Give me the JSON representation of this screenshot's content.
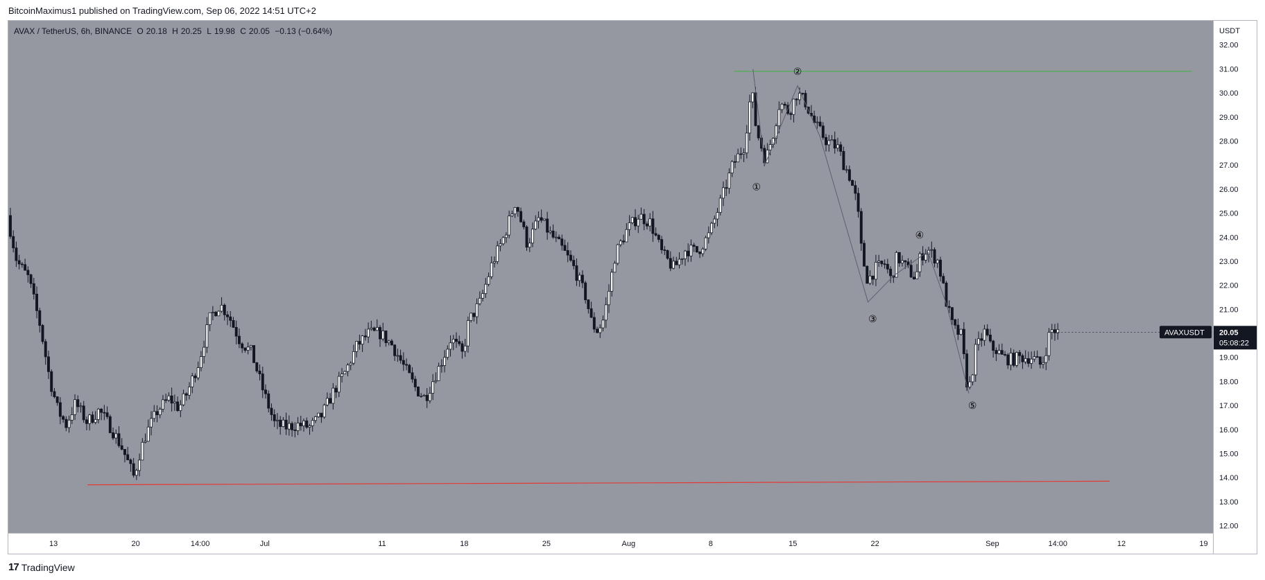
{
  "header": {
    "publisher_line": "BitcoinMaximus1 published on TradingView.com, Sep 06, 2022 14:51 UTC+2"
  },
  "legend": {
    "symbol": "AVAX / TetherUS, 6h, BINANCE",
    "open_label": "O",
    "open": "20.18",
    "high_label": "H",
    "high": "20.25",
    "low_label": "L",
    "low": "19.98",
    "close_label": "C",
    "close": "20.05",
    "change": "−0.13 (−0.64%)"
  },
  "price_tag": {
    "symbol": "AVAXUSDT",
    "price": "20.05",
    "countdown": "05:08:22"
  },
  "footer": {
    "logo": "17",
    "brand": "TradingView"
  },
  "colors": {
    "plot_bg": "#9598a1",
    "candle": "#131722",
    "support_line": "#e53935",
    "resistance_line": "#4caf50",
    "wave_line": "#5d606b",
    "axis_text": "#131722"
  },
  "chart_data": {
    "type": "candlestick",
    "y_axis_unit": "USDT",
    "ylim": [
      11.7,
      33.0
    ],
    "y_ticks": [
      "12.00",
      "13.00",
      "14.00",
      "15.00",
      "16.00",
      "17.00",
      "18.00",
      "19.00",
      "20.00",
      "21.00",
      "22.00",
      "23.00",
      "24.00",
      "25.00",
      "26.00",
      "27.00",
      "28.00",
      "29.00",
      "30.00",
      "31.00",
      "32.00"
    ],
    "x_ticks": [
      {
        "label": "13",
        "day": 13
      },
      {
        "label": "20",
        "day": 20
      },
      {
        "label": "14:00",
        "day": 25.5
      },
      {
        "label": "Jul",
        "day": 31
      },
      {
        "label": "11",
        "day": 41
      },
      {
        "label": "18",
        "day": 48
      },
      {
        "label": "25",
        "day": 55
      },
      {
        "label": "Aug",
        "day": 62
      },
      {
        "label": "8",
        "day": 69
      },
      {
        "label": "15",
        "day": 76
      },
      {
        "label": "22",
        "day": 83
      },
      {
        "label": "Sep",
        "day": 93
      },
      {
        "label": "14:00",
        "day": 98.58
      },
      {
        "label": "12",
        "day": 104
      },
      {
        "label": "19",
        "day": 111
      }
    ],
    "x_unit": "days since Jun 1, 2022 (6h candles)",
    "xlim": [
      9.15,
      111.8
    ],
    "price_path": [
      [
        9.2,
        24.9
      ],
      [
        10.0,
        23.0
      ],
      [
        11.0,
        22.3
      ],
      [
        12.0,
        20.3
      ],
      [
        12.8,
        18.1
      ],
      [
        13.5,
        16.8
      ],
      [
        14.2,
        16.2
      ],
      [
        15.0,
        17.1
      ],
      [
        16.0,
        16.3
      ],
      [
        17.0,
        16.8
      ],
      [
        18.0,
        16.1
      ],
      [
        19.0,
        15.2
      ],
      [
        20.0,
        14.0
      ],
      [
        20.4,
        14.9
      ],
      [
        21.0,
        15.8
      ],
      [
        22.0,
        16.8
      ],
      [
        23.0,
        17.3
      ],
      [
        23.8,
        16.9
      ],
      [
        24.5,
        17.5
      ],
      [
        25.5,
        18.8
      ],
      [
        26.5,
        20.7
      ],
      [
        27.3,
        21.2
      ],
      [
        28.0,
        20.8
      ],
      [
        29.0,
        19.7
      ],
      [
        30.0,
        19.2
      ],
      [
        31.0,
        17.6
      ],
      [
        32.0,
        16.2
      ],
      [
        33.0,
        16.1
      ],
      [
        34.0,
        16.2
      ],
      [
        35.0,
        16.1
      ],
      [
        36.0,
        16.6
      ],
      [
        37.0,
        17.6
      ],
      [
        38.0,
        18.4
      ],
      [
        39.0,
        19.5
      ],
      [
        40.0,
        20.0
      ],
      [
        41.0,
        20.0
      ],
      [
        42.0,
        19.5
      ],
      [
        43.0,
        18.6
      ],
      [
        44.0,
        17.7
      ],
      [
        44.8,
        17.3
      ],
      [
        45.5,
        18.1
      ],
      [
        46.0,
        18.6
      ],
      [
        47.0,
        19.8
      ],
      [
        48.0,
        19.1
      ],
      [
        48.5,
        20.5
      ],
      [
        49.5,
        21.3
      ],
      [
        50.5,
        22.9
      ],
      [
        51.5,
        24.0
      ],
      [
        52.5,
        25.5
      ],
      [
        53.0,
        24.6
      ],
      [
        53.5,
        23.7
      ],
      [
        54.5,
        24.8
      ],
      [
        55.5,
        24.1
      ],
      [
        56.5,
        23.5
      ],
      [
        57.5,
        22.7
      ],
      [
        58.5,
        21.5
      ],
      [
        59.0,
        20.4
      ],
      [
        59.5,
        20.1
      ],
      [
        60.0,
        20.6
      ],
      [
        60.5,
        21.9
      ],
      [
        61.0,
        23.3
      ],
      [
        62.0,
        24.3
      ],
      [
        63.0,
        24.9
      ],
      [
        64.0,
        24.6
      ],
      [
        65.0,
        23.3
      ],
      [
        66.0,
        22.7
      ],
      [
        67.0,
        23.5
      ],
      [
        68.0,
        23.4
      ],
      [
        69.0,
        24.1
      ],
      [
        70.0,
        25.5
      ],
      [
        71.0,
        27.0
      ],
      [
        72.0,
        27.8
      ],
      [
        72.6,
        30.2
      ],
      [
        73.0,
        28.5
      ],
      [
        73.8,
        27.2
      ],
      [
        74.5,
        28.4
      ],
      [
        75.0,
        29.6
      ],
      [
        75.8,
        29.2
      ],
      [
        76.5,
        30.0
      ],
      [
        77.2,
        29.6
      ],
      [
        78.0,
        28.7
      ],
      [
        79.0,
        28.0
      ],
      [
        80.0,
        27.7
      ],
      [
        80.5,
        27.0
      ],
      [
        81.0,
        26.5
      ],
      [
        81.6,
        25.4
      ],
      [
        82.0,
        23.3
      ],
      [
        82.5,
        22.2
      ],
      [
        83.2,
        22.7
      ],
      [
        84.0,
        22.9
      ],
      [
        84.5,
        22.2
      ],
      [
        85.0,
        23.2
      ],
      [
        86.0,
        22.6
      ],
      [
        86.6,
        22.3
      ],
      [
        87.0,
        23.2
      ],
      [
        87.6,
        23.5
      ],
      [
        88.5,
        23.0
      ],
      [
        89.2,
        21.3
      ],
      [
        89.8,
        20.2
      ],
      [
        90.5,
        19.9
      ],
      [
        90.9,
        18.0
      ],
      [
        91.3,
        17.8
      ],
      [
        91.6,
        19.2
      ],
      [
        92.0,
        19.6
      ],
      [
        92.5,
        20.1
      ],
      [
        93.0,
        19.4
      ],
      [
        93.5,
        19.3
      ],
      [
        94.0,
        19.0
      ],
      [
        94.8,
        18.9
      ],
      [
        95.5,
        19.0
      ],
      [
        96.5,
        19.0
      ],
      [
        97.2,
        18.7
      ],
      [
        97.5,
        18.9
      ],
      [
        98.0,
        20.0
      ],
      [
        98.3,
        20.2
      ],
      [
        98.58,
        20.05
      ]
    ],
    "wave_labels": [
      {
        "label": "①",
        "day": 72.9,
        "price": 26.1
      },
      {
        "label": "②",
        "day": 76.4,
        "price": 30.9
      },
      {
        "label": "③",
        "day": 82.8,
        "price": 20.6
      },
      {
        "label": "④",
        "day": 86.8,
        "price": 24.1
      },
      {
        "label": "⑤",
        "day": 91.3,
        "price": 17.0
      }
    ],
    "wave_path": [
      [
        72.6,
        31.0
      ],
      [
        73.6,
        27.0
      ],
      [
        76.4,
        30.3
      ],
      [
        78.3,
        28.2
      ],
      [
        82.4,
        21.3
      ],
      [
        84.6,
        22.4
      ],
      [
        87.5,
        23.4
      ],
      [
        89.1,
        21.2
      ],
      [
        91.0,
        17.5
      ]
    ],
    "resistance": {
      "y": 30.9,
      "x_from": 71.0,
      "x_to": 110.0
    },
    "support": {
      "x_from": 15.9,
      "y_from": 13.7,
      "x_to": 103.0,
      "y_to": 13.85
    },
    "last_price": 20.05
  }
}
